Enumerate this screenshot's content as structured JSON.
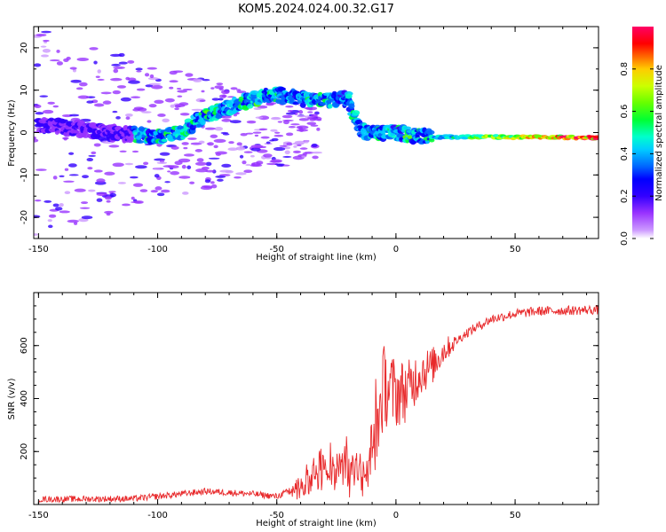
{
  "title": "KOM5.2024.024.00.32.G17",
  "colors": {
    "line": "#e8292b",
    "colormap": [
      "#cc99ff",
      "#9933ff",
      "#3300ff",
      "#0000ff",
      "#0066ff",
      "#00ccff",
      "#00ffcc",
      "#00ff33",
      "#66ff00",
      "#ccff00",
      "#ffcc00",
      "#ff6600",
      "#ff0000",
      "#ff0066"
    ]
  },
  "chart_data": [
    {
      "type": "heatmap",
      "xlabel": "Height of straight line (km)",
      "ylabel": "Frequency (Hz)",
      "xlim": [
        -152,
        85
      ],
      "ylim": [
        -25,
        25
      ],
      "xticks": [
        -150,
        -100,
        -50,
        0,
        50
      ],
      "yticks": [
        -20,
        -10,
        0,
        10,
        20
      ],
      "colorbar": {
        "label": "Normalized spectral amplitude",
        "range": [
          0,
          1
        ],
        "ticks": [
          "0.0",
          "0.2",
          "0.4",
          "0.6",
          "0.8"
        ],
        "tick_values": [
          0,
          0.2,
          0.4,
          0.6,
          0.8
        ]
      },
      "ridge": [
        {
          "x": -150,
          "y": 2
        },
        {
          "x": -120,
          "y": 0
        },
        {
          "x": -100,
          "y": -1
        },
        {
          "x": -90,
          "y": 0
        },
        {
          "x": -80,
          "y": 4
        },
        {
          "x": -70,
          "y": 6
        },
        {
          "x": -60,
          "y": 8
        },
        {
          "x": -50,
          "y": 9
        },
        {
          "x": -40,
          "y": 8
        },
        {
          "x": -30,
          "y": 7.5
        },
        {
          "x": -20,
          "y": 8
        },
        {
          "x": -15,
          "y": 0.5
        },
        {
          "x": -10,
          "y": 0
        },
        {
          "x": 0,
          "y": 0
        },
        {
          "x": 10,
          "y": -1
        },
        {
          "x": 20,
          "y": -1
        },
        {
          "x": 85,
          "y": -1.2
        }
      ]
    },
    {
      "type": "line",
      "xlabel": "Height of straight line (km)",
      "ylabel": "SNR (v/v)",
      "xlim": [
        -152,
        85
      ],
      "ylim": [
        0,
        800
      ],
      "xticks": [
        -150,
        -100,
        -50,
        0,
        50
      ],
      "yticks": [
        200,
        400,
        600
      ],
      "envelope": [
        {
          "x": -150,
          "y": 20
        },
        {
          "x": -110,
          "y": 22
        },
        {
          "x": -95,
          "y": 35
        },
        {
          "x": -80,
          "y": 50
        },
        {
          "x": -60,
          "y": 40
        },
        {
          "x": -50,
          "y": 30
        },
        {
          "x": -40,
          "y": 70
        },
        {
          "x": -30,
          "y": 140
        },
        {
          "x": -20,
          "y": 150
        },
        {
          "x": -12,
          "y": 100
        },
        {
          "x": -8,
          "y": 300
        },
        {
          "x": -5,
          "y": 450
        },
        {
          "x": 0,
          "y": 420
        },
        {
          "x": 5,
          "y": 430
        },
        {
          "x": 10,
          "y": 500
        },
        {
          "x": 15,
          "y": 520
        },
        {
          "x": 20,
          "y": 580
        },
        {
          "x": 30,
          "y": 650
        },
        {
          "x": 40,
          "y": 700
        },
        {
          "x": 50,
          "y": 720
        },
        {
          "x": 60,
          "y": 730
        },
        {
          "x": 85,
          "y": 735
        }
      ]
    }
  ]
}
